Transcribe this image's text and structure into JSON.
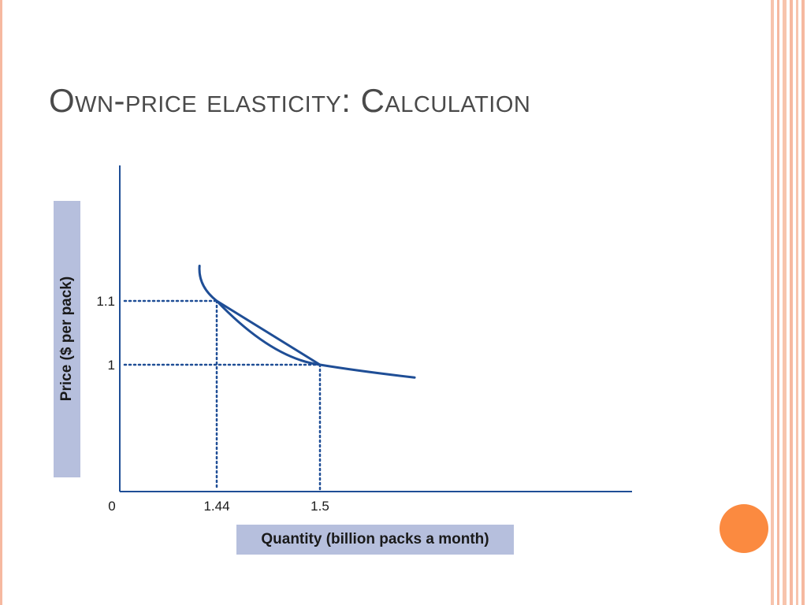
{
  "slide": {
    "title": "Own-price elasticity: Calculation"
  },
  "colors": {
    "accent_orange": "#fb8a40",
    "stripe_salmon": "#f6b9a0",
    "label_box": "#b6bfdd",
    "curve": "#1f4e96"
  },
  "chart_data": {
    "type": "line",
    "xlabel": "Quantity (billion packs a month)",
    "ylabel": "Price ($ per pack)",
    "origin_label": "0",
    "x_ticks": [
      {
        "value": 1.44,
        "label": "1.44"
      },
      {
        "value": 1.5,
        "label": "1.5"
      }
    ],
    "y_ticks": [
      {
        "value": 1.1,
        "label": "1.1"
      },
      {
        "value": 1.0,
        "label": "1"
      }
    ],
    "series": [
      {
        "kind": "demand-curve",
        "points": [
          [
            1.43,
            1.155
          ],
          [
            1.44,
            1.1
          ],
          [
            1.5,
            1.0
          ],
          [
            1.555,
            0.98
          ]
        ]
      },
      {
        "kind": "chord",
        "points": [
          [
            1.44,
            1.1
          ],
          [
            1.5,
            1.0
          ]
        ]
      }
    ],
    "guides": [
      {
        "x": 1.44,
        "y": 1.1
      },
      {
        "x": 1.5,
        "y": 1.0
      }
    ],
    "grid": false,
    "legend": "none"
  }
}
